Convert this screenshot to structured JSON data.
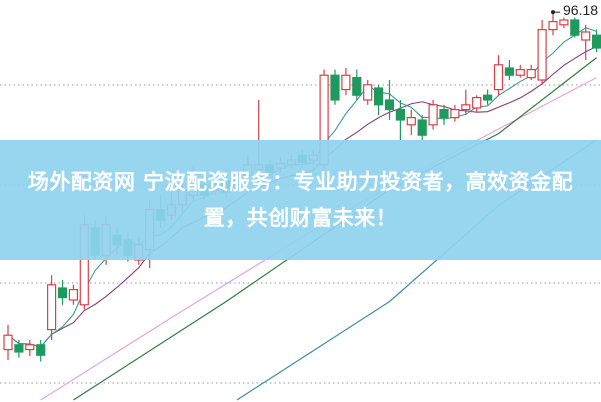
{
  "banner": {
    "text": "场外配资网 宁波配资服务：专业助力投资者，高效资金配置，共创财富未来！"
  },
  "chart_data": {
    "type": "candlestick",
    "max_label": "96.18",
    "ylim": [
      47.7,
      97.7
    ],
    "grid": "horizontal-dotted",
    "colors": {
      "up": "#d8404a",
      "down": "#1e9a5e",
      "ma_fast": "#3f9a98",
      "ma_slow": "#8a3c78",
      "pink": "#e5a6e6",
      "green": "#2f7d3c",
      "blue": "#3c8ca8",
      "grid": "#9a9a9a"
    },
    "candles": [
      {
        "o": 54.0,
        "c": 55.8,
        "h": 57.1,
        "l": 52.7
      },
      {
        "o": 54.6,
        "c": 53.7,
        "h": 55.2,
        "l": 53.0
      },
      {
        "o": 54.0,
        "c": 54.6,
        "h": 55.2,
        "l": 53.2
      },
      {
        "o": 54.6,
        "c": 53.3,
        "h": 55.2,
        "l": 52.5
      },
      {
        "o": 56.5,
        "c": 62.1,
        "h": 63.3,
        "l": 55.2
      },
      {
        "o": 61.7,
        "c": 60.5,
        "h": 62.7,
        "l": 59.6
      },
      {
        "o": 60.2,
        "c": 61.5,
        "h": 62.1,
        "l": 59.6
      },
      {
        "o": 59.6,
        "c": 69.6,
        "h": 70.8,
        "l": 59.0
      },
      {
        "o": 69.2,
        "c": 65.8,
        "h": 70.2,
        "l": 65.2
      },
      {
        "o": 65.8,
        "c": 69.6,
        "h": 70.8,
        "l": 64.6
      },
      {
        "o": 68.3,
        "c": 67.1,
        "h": 69.2,
        "l": 65.8
      },
      {
        "o": 67.7,
        "c": 65.8,
        "h": 68.7,
        "l": 65.0
      },
      {
        "o": 65.2,
        "c": 67.1,
        "h": 68.0,
        "l": 64.6
      },
      {
        "o": 66.5,
        "c": 71.5,
        "h": 72.7,
        "l": 64.2
      },
      {
        "o": 71.5,
        "c": 70.2,
        "h": 73.3,
        "l": 69.2
      },
      {
        "o": 70.8,
        "c": 72.1,
        "h": 74.0,
        "l": 70.2
      },
      {
        "o": 72.1,
        "c": 74.0,
        "h": 75.8,
        "l": 70.8
      },
      {
        "o": 73.3,
        "c": 75.2,
        "h": 77.1,
        "l": 72.7
      },
      {
        "o": 74.6,
        "c": 73.3,
        "h": 75.8,
        "l": 72.7
      },
      {
        "o": 74.0,
        "c": 74.6,
        "h": 75.2,
        "l": 73.3
      },
      {
        "o": 75.2,
        "c": 73.7,
        "h": 76.5,
        "l": 73.0
      },
      {
        "o": 74.6,
        "c": 75.2,
        "h": 75.8,
        "l": 74.0
      },
      {
        "o": 75.8,
        "c": 77.1,
        "h": 78.3,
        "l": 75.2
      },
      {
        "o": 76.5,
        "c": 77.1,
        "h": 85.2,
        "l": 75.8
      },
      {
        "o": 77.1,
        "c": 76.2,
        "h": 77.7,
        "l": 75.7
      },
      {
        "o": 76.7,
        "c": 77.3,
        "h": 78.0,
        "l": 76.2
      },
      {
        "o": 77.1,
        "c": 77.7,
        "h": 78.3,
        "l": 76.7
      },
      {
        "o": 78.3,
        "c": 77.4,
        "h": 79.0,
        "l": 76.7
      },
      {
        "o": 77.7,
        "c": 78.3,
        "h": 79.0,
        "l": 77.1
      },
      {
        "o": 77.1,
        "c": 88.3,
        "h": 89.0,
        "l": 76.7
      },
      {
        "o": 88.3,
        "c": 85.2,
        "h": 89.0,
        "l": 84.6
      },
      {
        "o": 86.5,
        "c": 88.3,
        "h": 89.2,
        "l": 85.8
      },
      {
        "o": 88.0,
        "c": 85.8,
        "h": 89.0,
        "l": 85.2
      },
      {
        "o": 85.2,
        "c": 87.1,
        "h": 87.7,
        "l": 84.6
      },
      {
        "o": 86.7,
        "c": 84.6,
        "h": 87.1,
        "l": 83.3
      },
      {
        "o": 85.2,
        "c": 84.0,
        "h": 87.7,
        "l": 82.7
      },
      {
        "o": 84.0,
        "c": 82.7,
        "h": 85.2,
        "l": 80.2
      },
      {
        "o": 82.1,
        "c": 83.0,
        "h": 84.0,
        "l": 80.8
      },
      {
        "o": 82.7,
        "c": 80.8,
        "h": 83.3,
        "l": 80.2
      },
      {
        "o": 82.1,
        "c": 84.6,
        "h": 85.2,
        "l": 81.5
      },
      {
        "o": 84.0,
        "c": 83.0,
        "h": 84.6,
        "l": 82.1
      },
      {
        "o": 83.0,
        "c": 84.0,
        "h": 84.6,
        "l": 82.5
      },
      {
        "o": 84.0,
        "c": 84.6,
        "h": 86.5,
        "l": 83.3
      },
      {
        "o": 84.2,
        "c": 85.5,
        "h": 85.8,
        "l": 83.7
      },
      {
        "o": 85.8,
        "c": 85.2,
        "h": 86.5,
        "l": 84.6
      },
      {
        "o": 86.5,
        "c": 89.6,
        "h": 90.8,
        "l": 85.8
      },
      {
        "o": 89.2,
        "c": 88.3,
        "h": 90.2,
        "l": 87.7
      },
      {
        "o": 88.3,
        "c": 89.0,
        "h": 89.6,
        "l": 88.0
      },
      {
        "o": 88.0,
        "c": 89.0,
        "h": 89.6,
        "l": 87.7
      },
      {
        "o": 87.7,
        "c": 94.0,
        "h": 95.2,
        "l": 87.1
      },
      {
        "o": 94.0,
        "c": 95.0,
        "h": 96.18,
        "l": 93.3
      },
      {
        "o": 94.6,
        "c": 95.2,
        "h": 95.5,
        "l": 94.2
      },
      {
        "o": 95.2,
        "c": 93.3,
        "h": 95.5,
        "l": 93.0
      },
      {
        "o": 92.7,
        "c": 93.7,
        "h": 94.6,
        "l": 90.2
      },
      {
        "o": 93.3,
        "c": 91.7,
        "h": 94.0,
        "l": 91.2
      }
    ],
    "long_lines": [
      {
        "color_key": "pink",
        "points": [
          [
            3,
            47.7
          ],
          [
            15,
            58
          ],
          [
            30,
            70.6
          ],
          [
            40,
            78
          ],
          [
            54,
            88
          ]
        ]
      },
      {
        "color_key": "green",
        "points": [
          [
            6,
            47.7
          ],
          [
            20,
            60
          ],
          [
            35,
            74
          ],
          [
            45,
            81
          ],
          [
            54,
            90.5
          ]
        ]
      },
      {
        "color_key": "blue",
        "points": [
          [
            21,
            47.7
          ],
          [
            35,
            60
          ],
          [
            45,
            72
          ],
          [
            54,
            80.2
          ]
        ]
      }
    ]
  }
}
